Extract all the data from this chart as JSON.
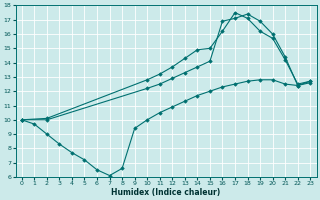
{
  "xlabel": "Humidex (Indice chaleur)",
  "xlim": [
    -0.5,
    23.5
  ],
  "ylim": [
    6,
    18
  ],
  "xticks": [
    0,
    1,
    2,
    3,
    4,
    5,
    6,
    7,
    8,
    9,
    10,
    11,
    12,
    13,
    14,
    15,
    16,
    17,
    18,
    19,
    20,
    21,
    22,
    23
  ],
  "yticks": [
    6,
    7,
    8,
    9,
    10,
    11,
    12,
    13,
    14,
    15,
    16,
    17,
    18
  ],
  "line_color": "#007070",
  "bg_color": "#cceaea",
  "grid_color": "#b0d8d8",
  "line1_x": [
    0,
    1,
    2,
    3,
    4,
    5,
    6,
    7,
    8,
    9,
    10,
    11,
    12,
    13,
    14,
    15,
    16,
    17,
    18,
    19,
    20,
    21,
    22,
    23
  ],
  "line1_y": [
    10,
    9.7,
    9.0,
    8.3,
    7.7,
    7.2,
    6.5,
    6.1,
    6.6,
    9.4,
    10.0,
    10.5,
    10.9,
    11.3,
    11.7,
    12.0,
    12.3,
    12.5,
    12.7,
    12.8,
    12.8,
    12.5,
    12.4,
    12.6
  ],
  "line2_x": [
    0,
    2,
    10,
    11,
    12,
    13,
    14,
    15,
    16,
    17,
    18,
    19,
    20,
    21,
    22,
    23
  ],
  "line2_y": [
    10,
    10.1,
    12.8,
    13.2,
    13.7,
    14.3,
    14.9,
    15.0,
    16.2,
    17.5,
    17.1,
    16.2,
    15.7,
    14.2,
    12.5,
    12.7
  ],
  "line3_x": [
    0,
    2,
    10,
    11,
    12,
    13,
    14,
    15,
    16,
    17,
    18,
    19,
    20,
    21,
    22,
    23
  ],
  "line3_y": [
    10,
    10.0,
    12.2,
    12.5,
    12.9,
    13.3,
    13.7,
    14.1,
    16.9,
    17.1,
    17.4,
    16.9,
    16.0,
    14.4,
    12.4,
    12.7
  ]
}
